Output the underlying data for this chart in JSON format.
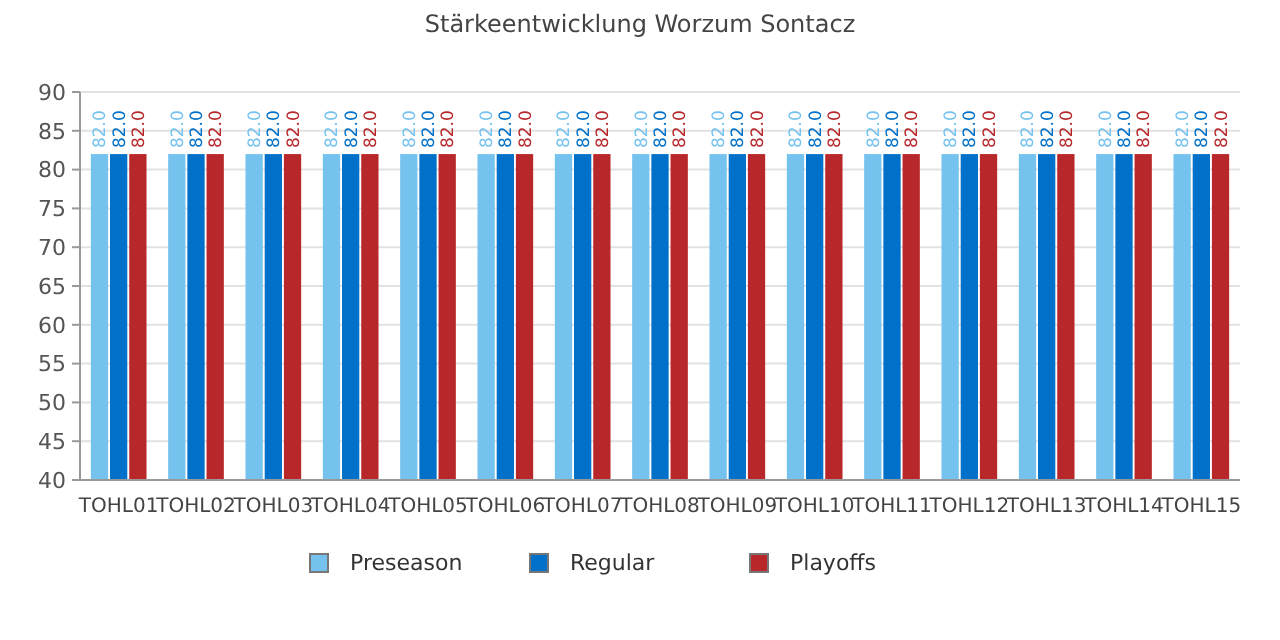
{
  "chart_data": {
    "type": "bar",
    "title": "Stärkeentwicklung Worzum Sontacz",
    "categories": [
      "TOHL01",
      "TOHL02",
      "TOHL03",
      "TOHL04",
      "TOHL05",
      "TOHL06",
      "TOHL07",
      "TOHL08",
      "TOHL09",
      "TOHL10",
      "TOHL11",
      "TOHL12",
      "TOHL13",
      "TOHL14",
      "TOHL15"
    ],
    "series": [
      {
        "name": "Preseason",
        "color": "#75c2ef",
        "values": [
          82,
          82,
          82,
          82,
          82,
          82,
          82,
          82,
          82,
          82,
          82,
          82,
          82,
          82,
          82
        ],
        "value_labels": [
          "82.0",
          "82.0",
          "82.0",
          "82.0",
          "82.0",
          "82.0",
          "82.0",
          "82.0",
          "82.0",
          "82.0",
          "82.0",
          "82.0",
          "82.0",
          "82.0",
          "82.0"
        ]
      },
      {
        "name": "Regular",
        "color": "#0070c8",
        "values": [
          82,
          82,
          82,
          82,
          82,
          82,
          82,
          82,
          82,
          82,
          82,
          82,
          82,
          82,
          82
        ],
        "value_labels": [
          "82.0",
          "82.0",
          "82.0",
          "82.0",
          "82.0",
          "82.0",
          "82.0",
          "82.0",
          "82.0",
          "82.0",
          "82.0",
          "82.0",
          "82.0",
          "82.0",
          "82.0"
        ]
      },
      {
        "name": "Playoffs",
        "color": "#b8282a",
        "values": [
          82,
          82,
          82,
          82,
          82,
          82,
          82,
          82,
          82,
          82,
          82,
          82,
          82,
          82,
          82
        ],
        "value_labels": [
          "82.0",
          "82.0",
          "82.0",
          "82.0",
          "82.0",
          "82.0",
          "82.0",
          "82.0",
          "82.0",
          "82.0",
          "82.0",
          "82.0",
          "82.0",
          "82.0",
          "82.0"
        ]
      }
    ],
    "ylim": [
      40,
      90
    ],
    "yticks": [
      40,
      45,
      50,
      55,
      60,
      65,
      70,
      75,
      80,
      85,
      90
    ],
    "grid": "y",
    "legend": "bottom"
  }
}
